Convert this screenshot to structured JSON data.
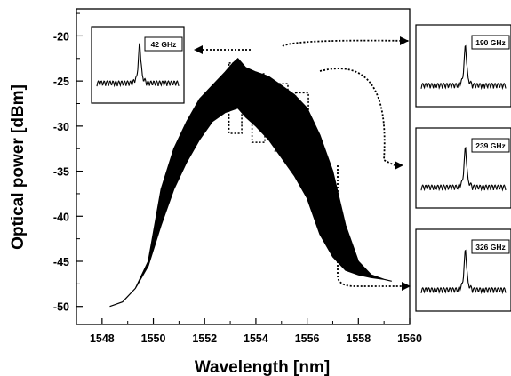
{
  "chart_data": {
    "type": "area",
    "xlabel": "Wavelength [nm]",
    "ylabel": "Optical power [dBm]",
    "xlim": [
      1547,
      1560
    ],
    "ylim": [
      -52,
      -17
    ],
    "xticks": [
      1548,
      1550,
      1552,
      1554,
      1556,
      1558,
      1560
    ],
    "yticks": [
      -20,
      -25,
      -30,
      -35,
      -40,
      -45,
      -50
    ],
    "grid": false,
    "series": [
      {
        "upper": {
          "x": [
            1548.3,
            1548.8,
            1549.3,
            1549.8,
            1550.3,
            1550.8,
            1551.3,
            1551.8,
            1552.3,
            1552.8,
            1553.1,
            1553.3,
            1553.6,
            1554.0,
            1554.5,
            1555.0,
            1555.5,
            1556.0,
            1556.5,
            1557.0,
            1557.5,
            1558.0,
            1558.5,
            1559.0,
            1559.3
          ],
          "y": [
            -50.0,
            -49.5,
            -48.0,
            -45.0,
            -37.0,
            -32.5,
            -29.5,
            -27.0,
            -25.5,
            -24.0,
            -23.0,
            -22.5,
            -23.5,
            -24.0,
            -24.5,
            -25.5,
            -26.5,
            -28.0,
            -31.0,
            -35.0,
            -41.0,
            -45.0,
            -46.5,
            -47.0,
            -47.2
          ]
        },
        "lower": {
          "x": [
            1548.3,
            1548.8,
            1549.3,
            1549.8,
            1550.3,
            1550.8,
            1551.3,
            1551.8,
            1552.3,
            1552.8,
            1553.1,
            1553.3,
            1553.6,
            1554.0,
            1554.5,
            1555.0,
            1555.5,
            1556.0,
            1556.5,
            1557.0,
            1557.5,
            1558.0,
            1558.5,
            1559.0,
            1559.3
          ],
          "y": [
            -50.0,
            -49.5,
            -48.0,
            -45.5,
            -41.0,
            -37.0,
            -34.0,
            -31.5,
            -29.5,
            -28.5,
            -28.2,
            -28.0,
            -29.0,
            -30.0,
            -31.5,
            -33.5,
            -35.5,
            -38.0,
            -42.0,
            -44.5,
            -46.0,
            -46.5,
            -46.8,
            -47.0,
            -47.2
          ]
        }
      }
    ],
    "highlight_boxes": [
      {
        "x0": 1552.95,
        "x1": 1553.45,
        "y0": -30.8,
        "y1": -23.0
      },
      {
        "x0": 1553.85,
        "x1": 1554.35,
        "y0": -31.8,
        "y1": -24.2
      },
      {
        "x0": 1554.75,
        "x1": 1555.25,
        "y0": -32.8,
        "y1": -25.3
      },
      {
        "x0": 1555.55,
        "x1": 1556.05,
        "y0": -34.2,
        "y1": -26.3
      }
    ],
    "insets": [
      {
        "label": "42 GHz",
        "position": "top-left",
        "peak_offset": 0
      },
      {
        "label": "190 GHz",
        "position": "right-top",
        "peak_offset": 0
      },
      {
        "label": "239 GHz",
        "position": "right-middle",
        "peak_offset": 0
      },
      {
        "label": "326 GHz",
        "position": "right-bottom",
        "peak_offset": 0
      }
    ]
  }
}
